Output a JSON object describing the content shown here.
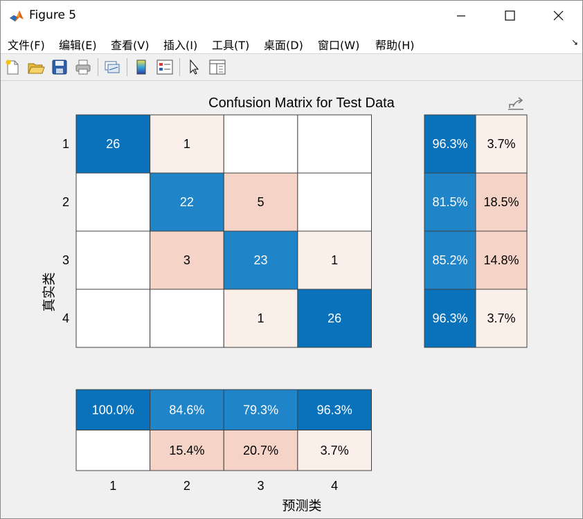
{
  "window": {
    "title": "Figure 5"
  },
  "menu": [
    {
      "label": "文件(F)"
    },
    {
      "label": "编辑(E)"
    },
    {
      "label": "查看(V)"
    },
    {
      "label": "插入(I)"
    },
    {
      "label": "工具(T)"
    },
    {
      "label": "桌面(D)"
    },
    {
      "label": "窗口(W)"
    },
    {
      "label": "帮助(H)"
    }
  ],
  "toolbar": [
    {
      "icon": "new-figure-icon"
    },
    {
      "icon": "open-file-icon"
    },
    {
      "icon": "save-icon"
    },
    {
      "icon": "print-icon"
    },
    {
      "icon": "link-plot-icon"
    },
    {
      "icon": "colorbar-icon"
    },
    {
      "icon": "legend-icon"
    },
    {
      "icon": "pointer-icon"
    },
    {
      "icon": "property-inspector-icon"
    }
  ],
  "chart_data": {
    "type": "heatmap",
    "title": "Confusion Matrix for Test Data",
    "xlabel": "预测类",
    "ylabel": "真实类",
    "classes": [
      "1",
      "2",
      "3",
      "4"
    ],
    "matrix": [
      [
        26,
        1,
        null,
        null
      ],
      [
        null,
        22,
        5,
        null
      ],
      [
        null,
        3,
        23,
        1
      ],
      [
        null,
        null,
        1,
        26
      ]
    ],
    "row_summary": [
      [
        "96.3%",
        "3.7%"
      ],
      [
        "81.5%",
        "18.5%"
      ],
      [
        "85.2%",
        "14.8%"
      ],
      [
        "96.3%",
        "3.7%"
      ]
    ],
    "column_summary": [
      [
        "100.0%",
        "84.6%",
        "79.3%",
        "96.3%"
      ],
      [
        "",
        "15.4%",
        "20.7%",
        "3.7%"
      ]
    ],
    "colors": {
      "diagonal_high": "#0a72ba",
      "diagonal_mid": "#1f84c8",
      "offdiag_high": "#f5d4c7",
      "offdiag_low": "#fbefea",
      "empty": "#ffffff",
      "border": "#404040"
    }
  }
}
